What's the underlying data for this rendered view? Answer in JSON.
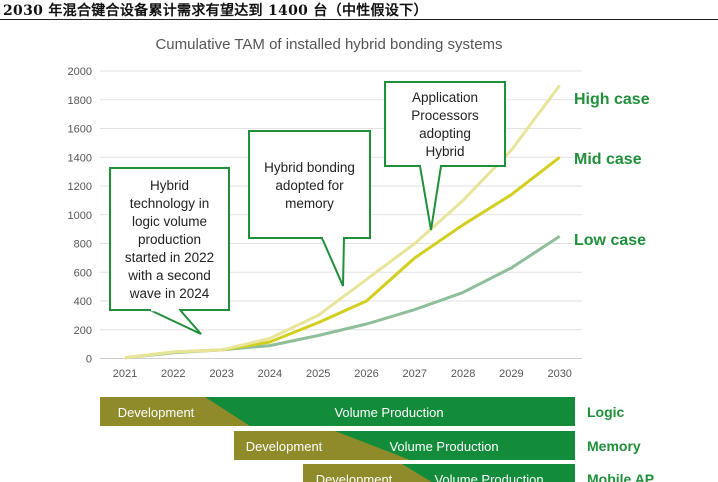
{
  "page_title": "2030 年混合键合设备累计需求有望达到 1400 台（中性假设下）",
  "colors": {
    "high": "#e8e59a",
    "mid": "#d2cf1e",
    "low": "#8fbf9a",
    "accent_green": "#1f8f3a",
    "bar_green": "#128c3a",
    "bar_olive": "#8f8a2a",
    "grid": "#e2e2e2"
  },
  "chart_data": {
    "type": "line",
    "title": "Cumulative TAM of installed hybrid bonding systems",
    "x": [
      "2021",
      "2022",
      "2023",
      "2024",
      "2025",
      "2026",
      "2027",
      "2028",
      "2029",
      "2030"
    ],
    "ylim": [
      0,
      2000
    ],
    "yticks": [
      "0",
      "200",
      "400",
      "600",
      "800",
      "1000",
      "1200",
      "1400",
      "1600",
      "1800",
      "2000"
    ],
    "grid": "horizontal",
    "series": [
      {
        "name": "High case",
        "key": "high",
        "values": [
          5,
          45,
          60,
          140,
          300,
          550,
          800,
          1100,
          1450,
          1900
        ]
      },
      {
        "name": "Mid case",
        "key": "mid",
        "values": [
          5,
          45,
          60,
          115,
          250,
          400,
          700,
          930,
          1140,
          1400
        ]
      },
      {
        "name": "Low case",
        "key": "low",
        "values": [
          5,
          40,
          60,
          90,
          160,
          240,
          340,
          460,
          630,
          850
        ]
      }
    ],
    "callouts": [
      {
        "lines": [
          "Hybrid",
          "technology in",
          "logic volume",
          "production",
          "started in 2022",
          "with a second",
          "wave in 2024"
        ]
      },
      {
        "lines": [
          "Hybrid bonding",
          "adopted for",
          "memory"
        ]
      },
      {
        "lines": [
          "Application",
          "Processors",
          "adopting",
          "Hybrid"
        ]
      }
    ]
  },
  "timeline": [
    {
      "segment": "Logic",
      "development": "Development",
      "production": "Volume Production"
    },
    {
      "segment": "Memory",
      "development": "Development",
      "production": "Volume Production"
    },
    {
      "segment": "Mobile AP",
      "development": "Development",
      "production": "Volume Production"
    }
  ]
}
